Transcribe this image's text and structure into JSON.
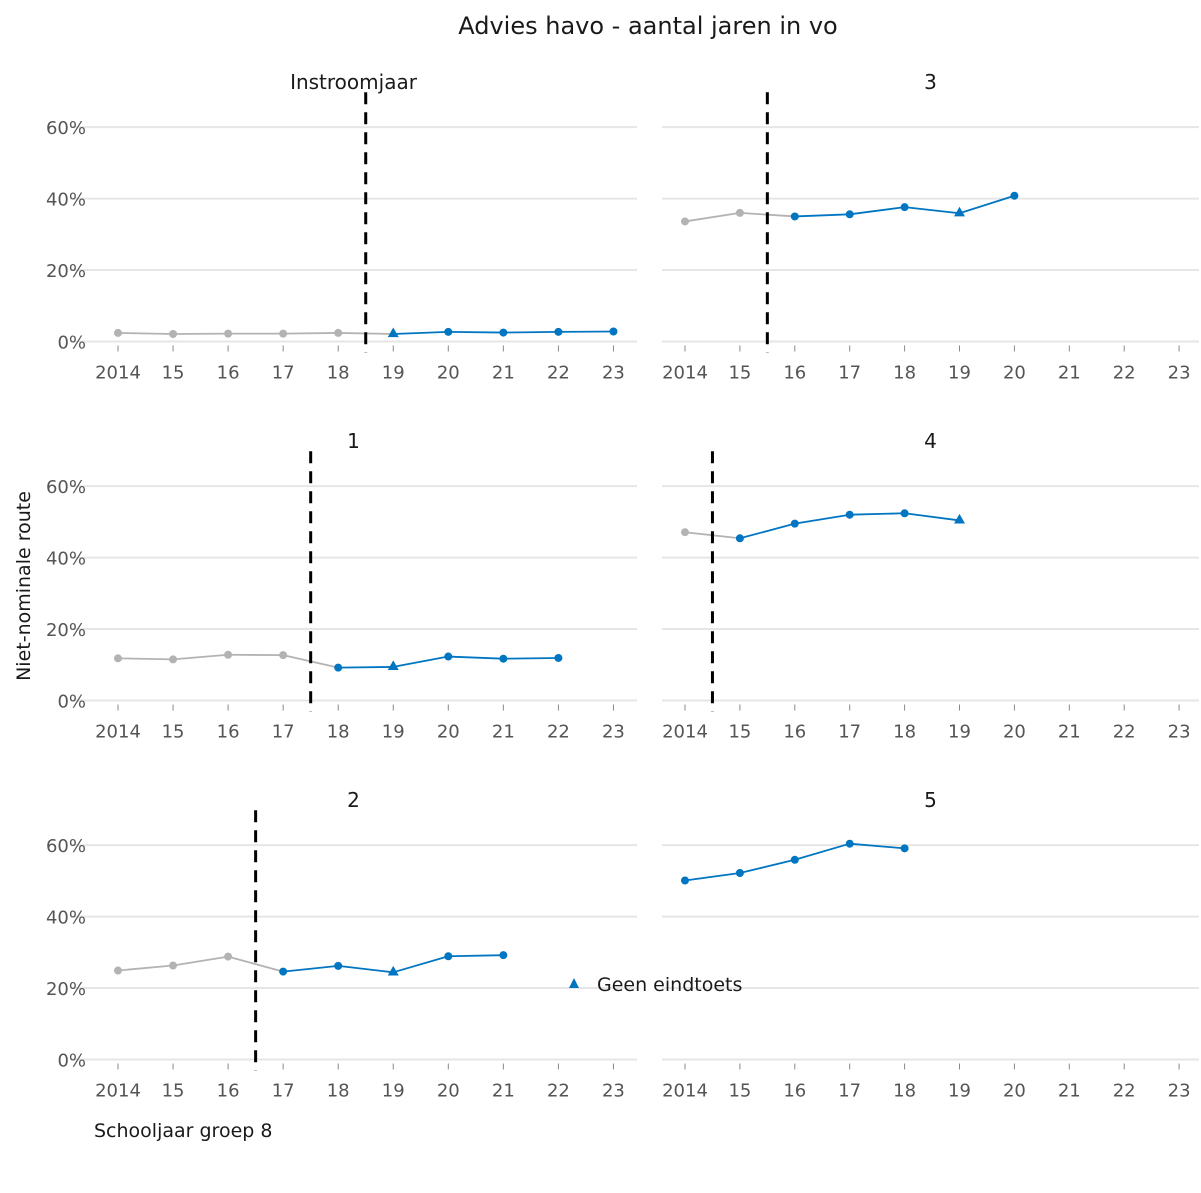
{
  "chart_data": {
    "type": "line",
    "title": "Advies havo - aantal jaren in vo",
    "xlabel": "Schooljaar groep 8",
    "ylabel": "Niet-nominale route",
    "x_tick_labels": [
      "2014",
      "15",
      "16",
      "17",
      "18",
      "19",
      "20",
      "21",
      "22",
      "23"
    ],
    "y_tick_labels": [
      "0%",
      "20%",
      "40%",
      "60%"
    ],
    "ylim": [
      0,
      0.65
    ],
    "grid": true,
    "legend": {
      "placement": "bottom",
      "label": "Geen eindtoets",
      "marker": "triangle"
    },
    "colors": {
      "before": "#b3b3b3",
      "after": "#0076c2",
      "cutoff": "#000000",
      "grid": "#e6e6e6"
    },
    "facets": [
      {
        "label": "Instroomjaar",
        "cutoff_after": 2018,
        "x": [
          2014,
          2015,
          2016,
          2017,
          2018,
          2019,
          2020,
          2021,
          2022,
          2023
        ],
        "y": [
          0.024,
          0.021,
          0.022,
          0.022,
          0.024,
          0.021,
          0.027,
          0.025,
          0.027,
          0.028
        ],
        "triangle_x": [
          2019
        ]
      },
      {
        "label": "1",
        "cutoff_after": 2017,
        "x": [
          2014,
          2015,
          2016,
          2017,
          2018,
          2019,
          2020,
          2021,
          2022
        ],
        "y": [
          0.118,
          0.115,
          0.128,
          0.127,
          0.092,
          0.094,
          0.123,
          0.117,
          0.119
        ],
        "triangle_x": [
          2019
        ]
      },
      {
        "label": "2",
        "cutoff_after": 2016,
        "x": [
          2014,
          2015,
          2016,
          2017,
          2018,
          2019,
          2020,
          2021
        ],
        "y": [
          0.249,
          0.263,
          0.288,
          0.246,
          0.262,
          0.244,
          0.289,
          0.292
        ],
        "triangle_x": [
          2019
        ]
      },
      {
        "label": "3",
        "cutoff_after": 2015,
        "x": [
          2014,
          2015,
          2016,
          2017,
          2018,
          2019,
          2020
        ],
        "y": [
          0.336,
          0.36,
          0.35,
          0.356,
          0.376,
          0.359,
          0.408
        ],
        "triangle_x": [
          2019
        ]
      },
      {
        "label": "4",
        "cutoff_after": 2014,
        "x": [
          2014,
          2015,
          2016,
          2017,
          2018,
          2019
        ],
        "y": [
          0.471,
          0.454,
          0.495,
          0.52,
          0.524,
          0.504
        ],
        "triangle_x": [
          2019
        ]
      },
      {
        "label": "5",
        "cutoff_after": null,
        "x": [
          2014,
          2015,
          2016,
          2017,
          2018
        ],
        "y": [
          0.501,
          0.522,
          0.559,
          0.604,
          0.591
        ],
        "triangle_x": []
      }
    ]
  }
}
